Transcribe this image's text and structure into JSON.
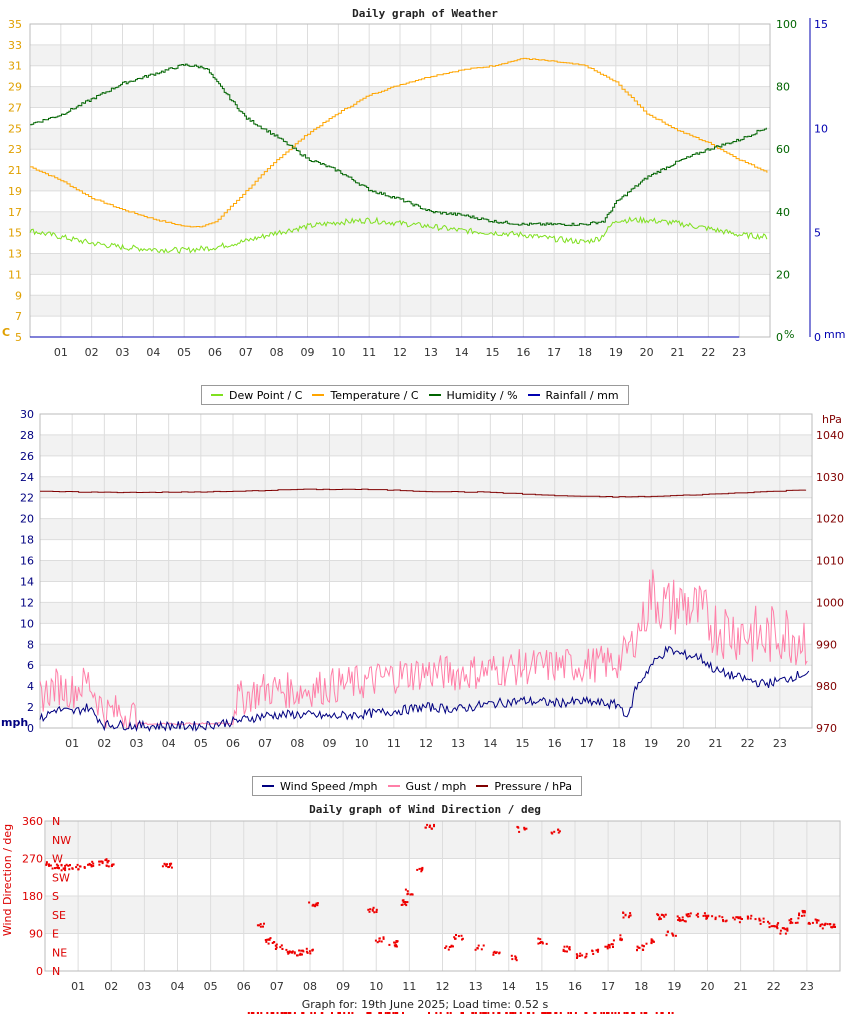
{
  "footer": {
    "text": "Graph for: 19th June 2025; Load time: 0.52 s"
  },
  "legend1": [
    {
      "label": "Dew Point / C",
      "color": "#7fe01f"
    },
    {
      "label": "Temperature / C",
      "color": "#ffa500"
    },
    {
      "label": "Humidity / %",
      "color": "#006400"
    },
    {
      "label": "Rainfall / mm",
      "color": "#0000b0"
    }
  ],
  "legend2": [
    {
      "label": "Wind Speed /mph",
      "color": "#000080"
    },
    {
      "label": "Gust / mph",
      "color": "#ff7fa8"
    },
    {
      "label": "Pressure / hPa",
      "color": "#800000"
    }
  ],
  "chart_data": [
    {
      "type": "line",
      "title": "Daily graph of Weather",
      "x_ticks": [
        "01",
        "02",
        "03",
        "04",
        "05",
        "06",
        "07",
        "08",
        "09",
        "10",
        "11",
        "12",
        "13",
        "14",
        "15",
        "16",
        "17",
        "18",
        "19",
        "20",
        "21",
        "22",
        "23"
      ],
      "xlim": [
        0,
        24
      ],
      "y_left": {
        "label": "C",
        "ticks": [
          5,
          7,
          9,
          11,
          13,
          15,
          17,
          19,
          21,
          23,
          25,
          27,
          29,
          31,
          33,
          35
        ],
        "ylim": [
          5,
          35
        ],
        "color": "#e0a000"
      },
      "y_right1": {
        "label": "%",
        "ticks": [
          0,
          20,
          40,
          60,
          80,
          100
        ],
        "ylim": [
          0,
          100
        ],
        "color": "#006400"
      },
      "y_right2": {
        "label": "mm",
        "ticks": [
          0,
          5,
          10,
          15
        ],
        "ylim": [
          0,
          15
        ],
        "color": "#0000b0"
      },
      "series": [
        {
          "name": "Temperature / C",
          "color": "#ffa500",
          "axis": "left",
          "x": [
            0,
            1,
            2,
            3,
            4,
            5,
            5.5,
            6,
            7,
            8,
            9,
            10,
            11,
            12,
            13,
            14,
            15,
            16,
            17,
            18,
            19,
            20,
            21,
            22,
            23,
            23.9
          ],
          "y": [
            21.3,
            20,
            18.3,
            17.2,
            16.3,
            15.6,
            15.6,
            16,
            19,
            22,
            24.5,
            26.5,
            28.2,
            29.2,
            30,
            30.6,
            31,
            31.7,
            31.4,
            31,
            29.4,
            26.4,
            24.8,
            23.6,
            22,
            20.8
          ]
        },
        {
          "name": "Dew Point / C",
          "color": "#7fe01f",
          "axis": "left",
          "x": [
            0,
            1,
            2,
            3,
            4,
            5,
            6,
            7,
            8,
            9,
            10,
            11,
            12,
            13,
            14,
            15,
            16,
            17,
            18,
            18.5,
            19,
            20,
            21,
            22,
            23,
            23.9
          ],
          "y": [
            15.2,
            14.6,
            14,
            13.6,
            13.4,
            13.3,
            13.6,
            14.2,
            15,
            15.6,
            16,
            16.2,
            15.9,
            15.6,
            15.2,
            15,
            14.8,
            14.4,
            14.1,
            14.5,
            16.2,
            16.2,
            15.9,
            15.4,
            14.8,
            14.6
          ]
        },
        {
          "name": "Humidity / %",
          "color": "#006400",
          "axis": "right1",
          "x": [
            0,
            1,
            2,
            3,
            4,
            5,
            5.7,
            6,
            6.5,
            7,
            8,
            9,
            10,
            11,
            12,
            13,
            14,
            15,
            16,
            17,
            18,
            18.6,
            19,
            20,
            21,
            22,
            23,
            23.9
          ],
          "y": [
            68,
            71,
            76,
            81,
            84,
            87,
            86,
            82,
            76,
            70,
            64,
            57,
            53,
            47,
            44,
            40,
            39,
            37,
            36,
            36,
            36,
            37,
            43,
            51,
            56,
            60,
            63,
            67
          ]
        },
        {
          "name": "Rainfall / mm",
          "color": "#0000b0",
          "axis": "right2",
          "x": [
            0,
            23.9
          ],
          "y": [
            0,
            0
          ]
        }
      ]
    },
    {
      "type": "line",
      "title": "",
      "x_ticks": [
        "01",
        "02",
        "03",
        "04",
        "05",
        "06",
        "07",
        "08",
        "09",
        "10",
        "11",
        "12",
        "13",
        "14",
        "15",
        "16",
        "17",
        "18",
        "19",
        "20",
        "21",
        "22",
        "23"
      ],
      "xlim": [
        0,
        24
      ],
      "y_left": {
        "label": "mph",
        "ticks": [
          0,
          2,
          4,
          6,
          8,
          10,
          12,
          14,
          16,
          18,
          20,
          22,
          24,
          26,
          28,
          30
        ],
        "ylim": [
          0,
          30
        ],
        "color": "#000080"
      },
      "y_right": {
        "label": "hPa",
        "ticks": [
          970,
          980,
          990,
          1000,
          1010,
          1020,
          1030,
          1040
        ],
        "ylim": [
          970,
          1045
        ],
        "color": "#800000"
      },
      "series": [
        {
          "name": "Pressure / hPa",
          "color": "#800000",
          "axis": "right",
          "x": [
            0,
            2,
            4,
            6,
            8,
            10,
            11,
            12,
            14,
            16,
            17,
            18,
            19,
            20,
            21,
            22,
            23,
            23.9
          ],
          "y": [
            1026.5,
            1026.3,
            1026.3,
            1026.5,
            1027,
            1027,
            1026.8,
            1026.5,
            1026.3,
            1025.5,
            1025.3,
            1025.2,
            1025.3,
            1025.6,
            1025.9,
            1026.3,
            1026.6,
            1027
          ]
        },
        {
          "name": "Wind Speed /mph",
          "color": "#000080",
          "axis": "left",
          "x": [
            0,
            0.5,
            1,
            1.5,
            2,
            2.5,
            3,
            4,
            5,
            6,
            7,
            8,
            9,
            10,
            11,
            12,
            13,
            14,
            15,
            16,
            17,
            18,
            18.3,
            18.5,
            19,
            19.5,
            20,
            20.5,
            21,
            21.5,
            22,
            22.5,
            23,
            23.5,
            23.9
          ],
          "y": [
            0.8,
            1.8,
            1.5,
            2,
            0.3,
            0.3,
            0.2,
            0.2,
            0.2,
            0.6,
            1.2,
            1.3,
            1.1,
            1.3,
            1.6,
            2,
            1.8,
            2.3,
            2.6,
            2.4,
            2.5,
            2.2,
            1,
            3.7,
            6,
            7.5,
            7,
            6.8,
            5.5,
            5,
            4.6,
            4.2,
            4.5,
            5,
            5.3
          ]
        },
        {
          "name": "Gust / mph",
          "color": "#ff7fa8",
          "axis": "left",
          "x": [
            0,
            0.5,
            1,
            1.5,
            2,
            2.5,
            3,
            4,
            5,
            6,
            7,
            8,
            9,
            10,
            11,
            12,
            13,
            14,
            15,
            16,
            17,
            18,
            18.5,
            19,
            19.5,
            20,
            20.5,
            21,
            21.5,
            22,
            22.5,
            23,
            23.5,
            23.9
          ],
          "y": [
            2.5,
            3.5,
            3,
            4,
            1,
            1,
            0.5,
            0.5,
            0.5,
            2,
            3.2,
            3,
            3.5,
            3.8,
            4.5,
            4.8,
            4.7,
            5,
            5.3,
            5.4,
            5.5,
            5.8,
            8,
            12,
            10.5,
            11,
            10,
            8.8,
            8.5,
            8.2,
            7.5,
            8.4,
            8,
            7.8
          ]
        }
      ]
    },
    {
      "type": "scatter",
      "title": "Daily graph of Wind Direction / deg",
      "x_ticks": [
        "01",
        "02",
        "03",
        "04",
        "05",
        "06",
        "07",
        "08",
        "09",
        "10",
        "11",
        "12",
        "13",
        "14",
        "15",
        "16",
        "17",
        "18",
        "19",
        "20",
        "21",
        "22",
        "23"
      ],
      "xlim": [
        0,
        24
      ],
      "ylabel": "Wind Direction / deg",
      "y_ticks": [
        0,
        90,
        180,
        270,
        360
      ],
      "ylim": [
        0,
        360
      ],
      "compass": [
        "N",
        "NE",
        "E",
        "SE",
        "S",
        "SW",
        "W",
        "NW",
        "N"
      ],
      "series": [
        {
          "name": "Wind Direction",
          "color": "#ee0000",
          "x": [
            0,
            0.3,
            0.6,
            0.9,
            1.2,
            1.5,
            1.8,
            2.0,
            3.7,
            6.5,
            6.8,
            7.1,
            7.4,
            7.7,
            8,
            8.1,
            9.9,
            10.1,
            10.5,
            10.8,
            11,
            11.3,
            11.6,
            12.2,
            12.5,
            13.1,
            13.6,
            14.2,
            14.4,
            15,
            15.4,
            15.8,
            16.2,
            16.6,
            17,
            17.3,
            17.6,
            18,
            18.3,
            18.6,
            18.9,
            19.2,
            19.5,
            19.8,
            20.1,
            20.5,
            20.9,
            21.3,
            21.7,
            22,
            22.3,
            22.6,
            22.9,
            23.2,
            23.5,
            23.8
          ],
          "y": [
            255,
            252,
            248,
            250,
            253,
            256,
            262,
            258,
            252,
            108,
            72,
            58,
            48,
            44,
            48,
            160,
            145,
            75,
            65,
            165,
            190,
            245,
            345,
            58,
            82,
            55,
            45,
            32,
            340,
            72,
            335,
            52,
            38,
            45,
            60,
            80,
            135,
            55,
            70,
            130,
            90,
            125,
            132,
            135,
            128,
            126,
            124,
            127,
            120,
            108,
            96,
            120,
            138,
            120,
            108,
            110
          ]
        }
      ]
    }
  ]
}
